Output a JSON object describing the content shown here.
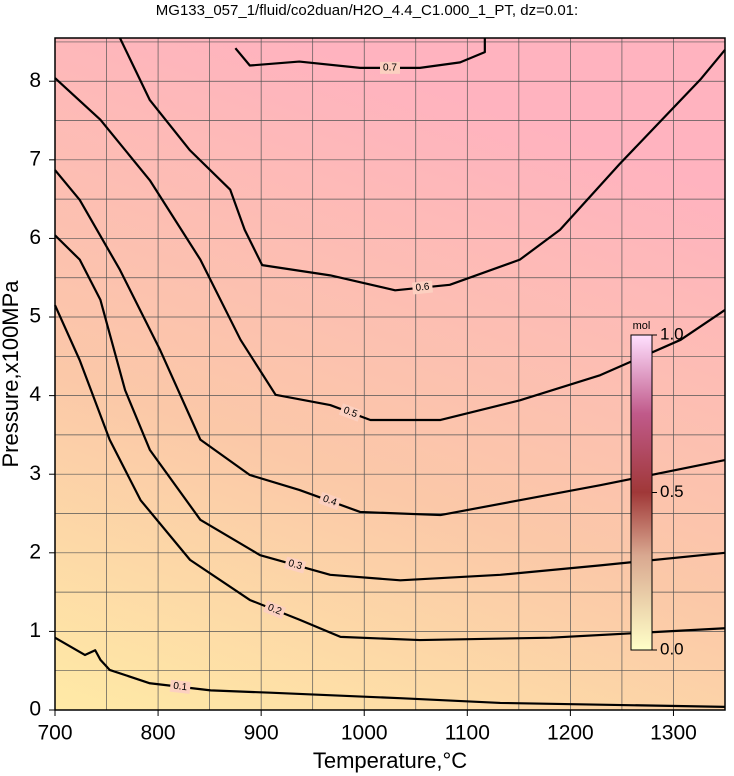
{
  "chart_data": {
    "type": "contour",
    "title": "MG133_057_1/fluid/co2duan/H2O_4.4_C1.000_1_PT, dz=0.01:",
    "xlabel": "Temperature,°C",
    "ylabel": "Pressure,x100MPa",
    "xlim": [
      700,
      1350
    ],
    "ylim": [
      0,
      8.55
    ],
    "xticks": [
      700,
      800,
      900,
      1000,
      1100,
      1200,
      1300
    ],
    "yticks": [
      0,
      1,
      2,
      3,
      4,
      5,
      6,
      7,
      8
    ],
    "xgrid": [
      750,
      850,
      950,
      1050,
      1150,
      1250
    ],
    "ygrid": [
      0.5,
      1.5,
      2.5,
      3.5,
      4.5,
      5.5,
      6.5,
      7.5,
      8.5
    ],
    "series": [
      {
        "name": "0.1",
        "color": "#000000",
        "x": [
          700,
          729,
          739,
          744,
          753,
          792,
          851,
          909,
          1035,
          1132,
          1350
        ],
        "values": [
          0.92,
          0.7,
          0.76,
          0.64,
          0.51,
          0.34,
          0.25,
          0.22,
          0.15,
          0.09,
          0.04
        ]
      },
      {
        "name": "0.2",
        "color": "#000000",
        "x": [
          700,
          724,
          753,
          783,
          831,
          889,
          937,
          977,
          1054,
          1181,
          1350
        ],
        "values": [
          5.15,
          4.45,
          3.44,
          2.67,
          1.91,
          1.4,
          1.15,
          0.93,
          0.89,
          0.92,
          1.04
        ]
      },
      {
        "name": "0.3",
        "color": "#000000",
        "x": [
          700,
          724,
          744,
          768,
          792,
          841,
          899,
          967,
          1035,
          1132,
          1229,
          1350
        ],
        "values": [
          6.04,
          5.73,
          5.22,
          4.07,
          3.31,
          2.42,
          1.97,
          1.72,
          1.65,
          1.72,
          1.84,
          2.0
        ]
      },
      {
        "name": "0.4",
        "color": "#000000",
        "x": [
          700,
          724,
          763,
          802,
          841,
          889,
          937,
          996,
          1074,
          1151,
          1229,
          1350
        ],
        "values": [
          6.87,
          6.49,
          5.6,
          4.58,
          3.44,
          2.99,
          2.8,
          2.52,
          2.48,
          2.67,
          2.86,
          3.18
        ]
      },
      {
        "name": "0.5",
        "color": "#000000",
        "x": [
          700,
          744,
          792,
          841,
          880,
          914,
          967,
          1006,
          1074,
          1151,
          1229,
          1307,
          1350
        ],
        "values": [
          8.04,
          7.51,
          6.74,
          5.73,
          4.71,
          4.01,
          3.88,
          3.69,
          3.69,
          3.94,
          4.26,
          4.71,
          5.09
        ]
      },
      {
        "name": "0.6",
        "color": "#000000",
        "x": [
          763,
          792,
          831,
          870,
          884,
          901,
          967,
          1030,
          1083,
          1151,
          1190,
          1248,
          1326,
          1350
        ],
        "values": [
          8.55,
          7.76,
          7.12,
          6.62,
          6.11,
          5.66,
          5.53,
          5.34,
          5.41,
          5.73,
          6.11,
          6.95,
          8.02,
          8.4
        ]
      },
      {
        "name": "0.7",
        "color": "#000000",
        "x": [
          875,
          889,
          937,
          996,
          1054,
          1093,
          1117,
          1117
        ],
        "values": [
          8.42,
          8.2,
          8.25,
          8.17,
          8.17,
          8.24,
          8.37,
          8.55
        ]
      }
    ],
    "colorbar": {
      "label": "mol",
      "lim": [
        0,
        1
      ],
      "ticks": [
        {
          "value": 0,
          "label": "0.0"
        },
        0.5,
        {
          "value": 1,
          "label": "1.0"
        }
      ]
    }
  }
}
